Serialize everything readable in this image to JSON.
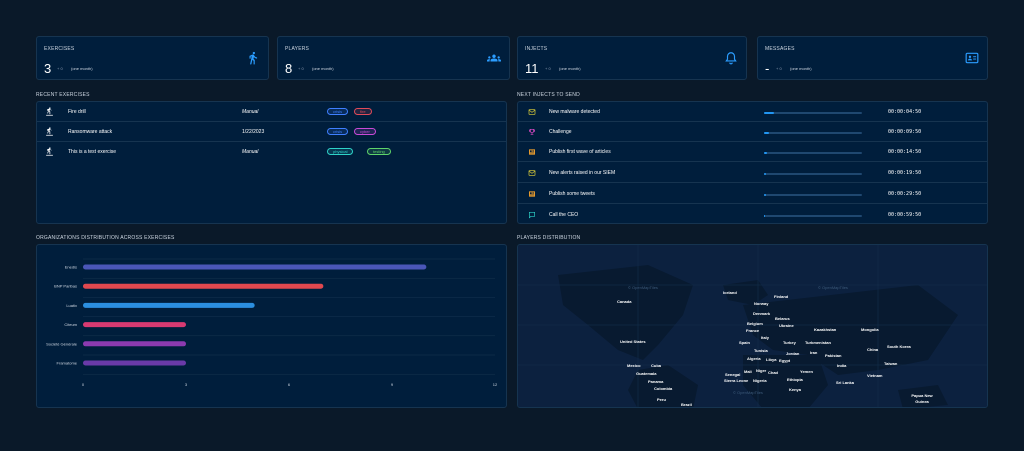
{
  "kpis": [
    {
      "title": "EXERCISES",
      "value": "3",
      "delta": "+ 0",
      "period": "(one month)",
      "icon": "runner-icon"
    },
    {
      "title": "PLAYERS",
      "value": "8",
      "delta": "+ 0",
      "period": "(one month)",
      "icon": "group-icon"
    },
    {
      "title": "INJECTS",
      "value": "11",
      "delta": "+ 0",
      "period": "(one month)",
      "icon": "bell-icon"
    },
    {
      "title": "MESSAGES",
      "value": "-",
      "delta": "+ 0",
      "period": "(one month)",
      "icon": "contact-card-icon"
    }
  ],
  "recent_exercises": {
    "title": "RECENT EXERCISES",
    "rows": [
      {
        "name": "Fire drill",
        "date": "Manual",
        "tags": [
          {
            "label": "crisis",
            "color": "#3f7fff"
          },
          {
            "label": "fire",
            "color": "#e04a5a"
          }
        ]
      },
      {
        "name": "Ransomware attack",
        "date": "1/22/2023",
        "tags": [
          {
            "label": "crisis",
            "color": "#3f7fff"
          },
          {
            "label": "cyber",
            "color": "#c94ad6"
          }
        ]
      },
      {
        "name": "This is a test exercise",
        "date": "Manual",
        "tags": [
          {
            "label": "physical",
            "color": "#2ed3c8"
          },
          {
            "label": "testing",
            "color": "#5ed46a"
          }
        ]
      }
    ]
  },
  "next_injects": {
    "title": "NEXT INJECTS TO SEND",
    "rows": [
      {
        "name": "New malware detected",
        "time": "00:00:04:50",
        "progress": 0.1,
        "icon": "email-icon",
        "icon_color": "#e5d53a"
      },
      {
        "name": "Challenge",
        "time": "00:00:09:50",
        "progress": 0.05,
        "icon": "trophy-icon",
        "icon_color": "#e04ac8"
      },
      {
        "name": "Publish first wave of articles",
        "time": "00:00:14:50",
        "progress": 0.03,
        "icon": "newspaper-icon",
        "icon_color": "#e59a2e"
      },
      {
        "name": "New alerts raised in our SIEM",
        "time": "00:00:19:50",
        "progress": 0.02,
        "icon": "email-icon",
        "icon_color": "#e5d53a"
      },
      {
        "name": "Publish some tweets",
        "time": "00:00:29:50",
        "progress": 0.02,
        "icon": "newspaper-icon",
        "icon_color": "#e59a2e"
      },
      {
        "name": "Call the CEO",
        "time": "00:00:59:50",
        "progress": 0.01,
        "icon": "chat-icon",
        "icon_color": "#2ed3c8"
      }
    ]
  },
  "orgs": {
    "title": "ORGANIZATIONS DISTRIBUTION ACROSS EXERCISES"
  },
  "chart_data": {
    "type": "bar",
    "orientation": "horizontal",
    "categories": [
      "Enedis",
      "BNP Paribas",
      "Luatix",
      "Citeum",
      "Société Générale",
      "Framatome"
    ],
    "values": [
      10,
      7,
      5,
      3,
      3,
      3
    ],
    "colors": [
      "#4a56b8",
      "#e0484f",
      "#2b8fe0",
      "#d83a72",
      "#8c3ab0",
      "#6a3aa8"
    ],
    "xlim": [
      0,
      12
    ],
    "xticks": [
      "0",
      "3",
      "6",
      "9",
      "12"
    ],
    "grid": true
  },
  "players_map": {
    "title": "PLAYERS DISTRIBUTION",
    "watermark": "© OpenMapTiles",
    "labels": [
      "Iceland",
      "Finland",
      "Canada",
      "Norway",
      "Denmark",
      "Belarus",
      "Belgium",
      "Ukraine",
      "France",
      "Kazakhstan",
      "Mongolia",
      "Italy",
      "Spain",
      "Turkey",
      "Turkmenistan",
      "United States",
      "South Korea",
      "China",
      "Jordan",
      "Iran",
      "Tunisia",
      "Pakistan",
      "Algeria",
      "Libya",
      "Egypt",
      "India",
      "Taiwan",
      "Mexico",
      "Cuba",
      "Mali",
      "Niger",
      "Chad",
      "Yemen",
      "Guatemala",
      "Senegal",
      "Vietnam",
      "Sierra Leone",
      "Nigeria",
      "Ethiopia",
      "Panama",
      "Sri Lanka",
      "Colombia",
      "Kenya",
      "Peru",
      "Brazil",
      "Papua New Guinea"
    ]
  }
}
